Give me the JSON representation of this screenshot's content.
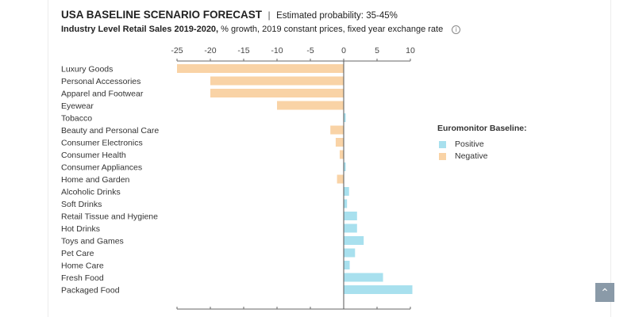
{
  "header": {
    "title": "USA BASELINE SCENARIO FORECAST",
    "separator": "|",
    "probability": "Estimated probability: 35-45%",
    "subtitle_bold": "Industry Level Retail Sales 2019-2020,",
    "subtitle_rest": " % growth, 2019 constant prices, fixed year exchange rate",
    "info_icon": "i"
  },
  "legend": {
    "title": "Euromonitor Baseline:",
    "items": [
      {
        "label": "Positive",
        "color": "#a8e0ee"
      },
      {
        "label": "Negative",
        "color": "#f9d3a6"
      }
    ]
  },
  "scroll_top_icon": "chevron-up-icon",
  "chart_data": {
    "type": "bar",
    "orientation": "horizontal",
    "title": "Industry Level Retail Sales 2019-2020",
    "xlim": [
      -25,
      10
    ],
    "xticks": [
      -25,
      -20,
      -15,
      -10,
      -5,
      0,
      5,
      10
    ],
    "categories": [
      "Luxury Goods",
      "Personal Accessories",
      "Apparel and Footwear",
      "Eyewear",
      "Tobacco",
      "Beauty and Personal Care",
      "Consumer Electronics",
      "Consumer Health",
      "Consumer Appliances",
      "Home and Garden",
      "Alcoholic Drinks",
      "Soft Drinks",
      "Retail Tissue and Hygiene",
      "Hot Drinks",
      "Toys and Games",
      "Pet Care",
      "Home Care",
      "Fresh Food",
      "Packaged Food"
    ],
    "values": [
      -25,
      -20,
      -20,
      -10,
      0.3,
      -2,
      -1.2,
      -0.6,
      0.3,
      -1,
      0.8,
      0.5,
      2,
      2,
      3,
      1.7,
      0.9,
      5.9,
      10.3
    ],
    "positive_color": "#a8e0ee",
    "negative_color": "#f9d3a6",
    "grid": false
  }
}
